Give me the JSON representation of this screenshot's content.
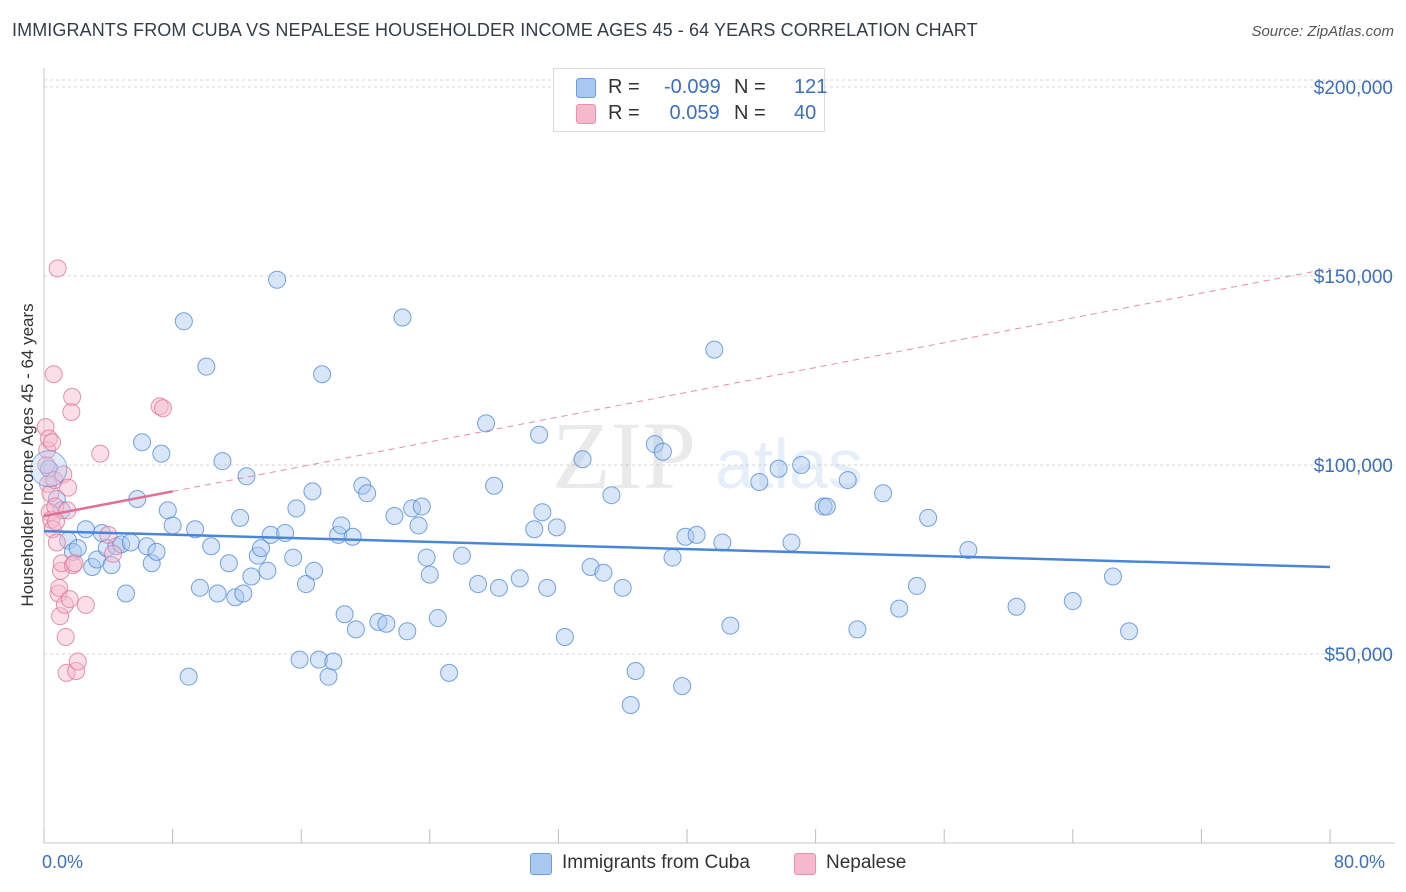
{
  "header": {
    "title": "IMMIGRANTS FROM CUBA VS NEPALESE HOUSEHOLDER INCOME AGES 45 - 64 YEARS CORRELATION CHART",
    "source": "Source: ZipAtlas.com"
  },
  "watermark": {
    "big": "ZIP",
    "small": "atlas"
  },
  "legend": {
    "rows": [
      {
        "r_label": "R =",
        "r_value": "-0.099",
        "n_label": "N =",
        "n_value": "121",
        "color": "#a8c8f0"
      },
      {
        "r_label": "R =",
        "r_value": " 0.059",
        "n_label": "N =",
        "n_value": "40",
        "color": "#f5b8cc"
      }
    ]
  },
  "bottom_legend": [
    {
      "label": "Immigrants from Cuba",
      "color": "#a8c8f0"
    },
    {
      "label": "Nepalese",
      "color": "#f5b8cc"
    }
  ],
  "axes": {
    "y_title": "Householder Income Ages 45 - 64 years",
    "x_min_label": "0.0%",
    "x_max_label": "80.0%"
  },
  "chart_data": {
    "type": "scatter",
    "title": "IMMIGRANTS FROM CUBA VS NEPALESE HOUSEHOLDER INCOME AGES 45 - 64 YEARS CORRELATION CHART",
    "xlabel": "",
    "ylabel": "Householder Income Ages 45 - 64 years",
    "xlim": [
      0,
      80
    ],
    "ylim": [
      0,
      205000
    ],
    "y_ticks": [
      {
        "value": 50000,
        "label": "$50,000"
      },
      {
        "value": 100000,
        "label": "$100,000"
      },
      {
        "value": 150000,
        "label": "$150,000"
      },
      {
        "value": 200000,
        "label": "$200,000"
      }
    ],
    "x_tick_values": [
      0,
      8,
      16,
      24,
      32,
      40,
      48,
      56,
      64,
      72,
      80
    ],
    "grid": true,
    "series": [
      {
        "name": "Immigrants from Cuba",
        "color": "#4a86d8",
        "fill": "#a8c8f0",
        "r": -0.099,
        "n": 121,
        "trend": {
          "x": [
            0,
            80
          ],
          "y": [
            82500,
            73000
          ],
          "style": "solid"
        },
        "points": [
          [
            0.3,
            99000
          ],
          [
            0.8,
            91000
          ],
          [
            1.1,
            88000
          ],
          [
            1.5,
            80000
          ],
          [
            1.8,
            77000
          ],
          [
            2.1,
            78000
          ],
          [
            2.6,
            83000
          ],
          [
            3.0,
            73000
          ],
          [
            3.3,
            75000
          ],
          [
            3.6,
            82000
          ],
          [
            3.9,
            78000
          ],
          [
            4.2,
            73500
          ],
          [
            4.5,
            78500
          ],
          [
            4.8,
            79000
          ],
          [
            5.1,
            66000
          ],
          [
            5.4,
            79500
          ],
          [
            5.8,
            91000
          ],
          [
            6.1,
            106000
          ],
          [
            6.4,
            78500
          ],
          [
            6.7,
            74000
          ],
          [
            7.0,
            77000
          ],
          [
            7.3,
            103000
          ],
          [
            7.7,
            88000
          ],
          [
            8.0,
            84000
          ],
          [
            8.7,
            138000
          ],
          [
            9.0,
            44000
          ],
          [
            9.4,
            83000
          ],
          [
            9.7,
            67500
          ],
          [
            10.1,
            126000
          ],
          [
            10.4,
            78500
          ],
          [
            10.8,
            66000
          ],
          [
            11.1,
            101000
          ],
          [
            11.5,
            74000
          ],
          [
            11.9,
            65000
          ],
          [
            12.2,
            86000
          ],
          [
            12.4,
            66000
          ],
          [
            12.6,
            97000
          ],
          [
            12.9,
            70500
          ],
          [
            13.3,
            76000
          ],
          [
            13.5,
            78000
          ],
          [
            13.9,
            72000
          ],
          [
            14.1,
            81500
          ],
          [
            14.5,
            149000
          ],
          [
            15.0,
            82000
          ],
          [
            15.5,
            75500
          ],
          [
            15.7,
            88500
          ],
          [
            15.9,
            48500
          ],
          [
            16.3,
            68500
          ],
          [
            16.7,
            93000
          ],
          [
            16.8,
            72000
          ],
          [
            17.1,
            48500
          ],
          [
            17.3,
            124000
          ],
          [
            17.7,
            44000
          ],
          [
            18.0,
            48000
          ],
          [
            18.3,
            81500
          ],
          [
            18.5,
            84000
          ],
          [
            18.7,
            60500
          ],
          [
            19.2,
            81000
          ],
          [
            19.4,
            56500
          ],
          [
            19.8,
            94500
          ],
          [
            20.1,
            92500
          ],
          [
            20.8,
            58500
          ],
          [
            21.3,
            58000
          ],
          [
            21.8,
            86500
          ],
          [
            22.3,
            139000
          ],
          [
            22.6,
            56000
          ],
          [
            22.9,
            88500
          ],
          [
            23.3,
            84000
          ],
          [
            23.5,
            89000
          ],
          [
            23.8,
            75500
          ],
          [
            24.0,
            71000
          ],
          [
            24.5,
            59500
          ],
          [
            25.2,
            45000
          ],
          [
            26.0,
            76000
          ],
          [
            27.0,
            68500
          ],
          [
            27.5,
            111000
          ],
          [
            28.0,
            94500
          ],
          [
            28.3,
            67500
          ],
          [
            29.6,
            70000
          ],
          [
            30.5,
            83000
          ],
          [
            30.8,
            108000
          ],
          [
            31.0,
            87500
          ],
          [
            31.3,
            67500
          ],
          [
            31.9,
            83500
          ],
          [
            32.4,
            54500
          ],
          [
            33.5,
            101500
          ],
          [
            34.0,
            73000
          ],
          [
            34.8,
            71500
          ],
          [
            35.3,
            92000
          ],
          [
            36.0,
            67500
          ],
          [
            36.5,
            36500
          ],
          [
            36.8,
            45500
          ],
          [
            38.0,
            105500
          ],
          [
            38.5,
            103500
          ],
          [
            39.1,
            75500
          ],
          [
            39.7,
            41500
          ],
          [
            39.9,
            81000
          ],
          [
            40.6,
            81500
          ],
          [
            41.7,
            130500
          ],
          [
            42.2,
            79500
          ],
          [
            42.7,
            57500
          ],
          [
            44.5,
            95500
          ],
          [
            45.7,
            99000
          ],
          [
            46.5,
            79500
          ],
          [
            47.1,
            100000
          ],
          [
            48.5,
            89000
          ],
          [
            48.7,
            89000
          ],
          [
            50.0,
            96000
          ],
          [
            50.6,
            56500
          ],
          [
            52.2,
            92500
          ],
          [
            53.2,
            62000
          ],
          [
            54.3,
            68000
          ],
          [
            55.0,
            86000
          ],
          [
            57.5,
            77500
          ],
          [
            60.5,
            62500
          ],
          [
            64.0,
            64000
          ],
          [
            66.5,
            70500
          ],
          [
            67.5,
            56000
          ]
        ]
      },
      {
        "name": "Nepalese",
        "color": "#e07095",
        "fill": "#f5b8cc",
        "r": 0.059,
        "n": 40,
        "trend": {
          "x": [
            0,
            8
          ],
          "y": [
            86500,
            93000
          ],
          "style": "solid",
          "extension": {
            "x": [
              8,
              80
            ],
            "y": [
              93000,
              152000
            ],
            "style": "dashed"
          }
        },
        "points": [
          [
            0.1,
            110000
          ],
          [
            0.15,
            100000
          ],
          [
            0.2,
            104000
          ],
          [
            0.25,
            95000
          ],
          [
            0.3,
            107000
          ],
          [
            0.35,
            87500
          ],
          [
            0.4,
            92500
          ],
          [
            0.45,
            85500
          ],
          [
            0.5,
            106000
          ],
          [
            0.55,
            83000
          ],
          [
            0.6,
            124000
          ],
          [
            0.65,
            96000
          ],
          [
            0.7,
            89000
          ],
          [
            0.75,
            85000
          ],
          [
            0.8,
            79500
          ],
          [
            0.85,
            152000
          ],
          [
            0.9,
            66000
          ],
          [
            0.95,
            67500
          ],
          [
            1.0,
            60000
          ],
          [
            1.05,
            72000
          ],
          [
            1.1,
            74000
          ],
          [
            1.2,
            97500
          ],
          [
            1.3,
            63000
          ],
          [
            1.35,
            54500
          ],
          [
            1.4,
            45000
          ],
          [
            1.45,
            88000
          ],
          [
            1.5,
            94000
          ],
          [
            1.6,
            64500
          ],
          [
            1.7,
            114000
          ],
          [
            1.75,
            118000
          ],
          [
            1.8,
            73500
          ],
          [
            1.9,
            74000
          ],
          [
            2.0,
            45500
          ],
          [
            2.1,
            48000
          ],
          [
            2.6,
            63000
          ],
          [
            3.5,
            103000
          ],
          [
            4.0,
            81500
          ],
          [
            4.3,
            76500
          ],
          [
            7.2,
            115500
          ],
          [
            7.4,
            115000
          ]
        ]
      }
    ]
  }
}
